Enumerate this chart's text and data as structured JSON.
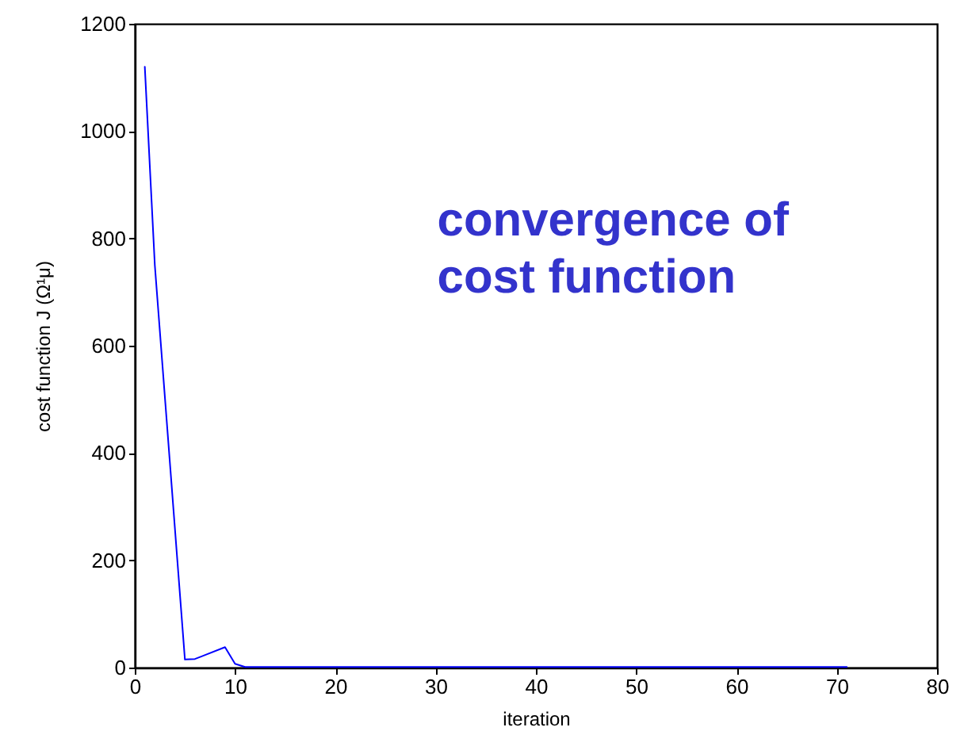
{
  "chart_data": {
    "type": "line",
    "xlabel": "iteration",
    "ylabel": "cost function J (Ω¹μ)",
    "annotations": [
      "convergence of cost function"
    ],
    "x": [
      1,
      2,
      5,
      6,
      9,
      10,
      11,
      71
    ],
    "series": [
      {
        "color": "#0000ff",
        "values": [
          1120,
          750,
          15,
          16,
          38,
          7,
          1,
          1
        ]
      }
    ],
    "xlim": [
      0,
      80
    ],
    "ylim": [
      0,
      1200
    ],
    "xticks": [
      0,
      10,
      20,
      30,
      40,
      50,
      60,
      70,
      80
    ],
    "yticks": [
      0,
      200,
      400,
      600,
      800,
      1000,
      1200
    ],
    "grid": false,
    "marker": "none",
    "line_style": "solid"
  }
}
